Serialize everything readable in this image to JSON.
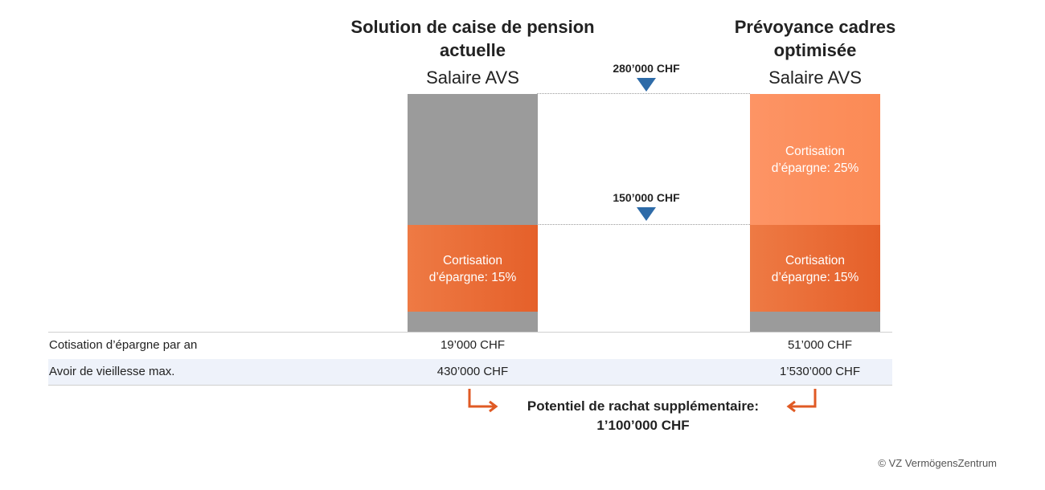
{
  "chart_data": {
    "type": "bar",
    "columns": [
      {
        "title": "Solution de caise de pension actuelle",
        "title_line1": "Solution de caise de pension",
        "title_line2": "actuelle",
        "subtitle": "Salaire AVS",
        "segments": [
          {
            "label_line1": "Cortisation",
            "label_line2": "d’épargne: 15%",
            "rate_percent": 15,
            "color": "#e8692d"
          }
        ]
      },
      {
        "title": "Prévoyance cadres optimisée",
        "title_line1": "Prévoyance cadres",
        "title_line2": "optimisée",
        "subtitle": "Salaire AVS",
        "segments": [
          {
            "label_line1": "Cortisation",
            "label_line2": "d’épargne: 25%",
            "rate_percent": 25,
            "color": "#fd8c59"
          },
          {
            "label_line1": "Cortisation",
            "label_line2": "d’épargne: 15%",
            "rate_percent": 15,
            "color": "#e8692d"
          }
        ]
      }
    ],
    "salary_thresholds": [
      {
        "label": "280’000 CHF",
        "value": 280000
      },
      {
        "label": "150’000 CHF",
        "value": 150000
      }
    ],
    "uncovered_color": "#9b9b9b",
    "arrow_color": "#2e6ba8"
  },
  "table": {
    "rows": [
      {
        "label": "Cotisation d’épargne par an",
        "current": "19’000 CHF",
        "optimized": "51’000 CHF"
      },
      {
        "label": "Avoir de vieillesse max.",
        "current": "430’000 CHF",
        "optimized": "1’530’000 CHF"
      }
    ],
    "alt_row_color": "#eef2fa"
  },
  "rachat": {
    "line1": "Potentiel de rachat supplémentaire:",
    "line2": "1’100’000 CHF",
    "arrow_color": "#e05a24"
  },
  "copyright": "© VZ VermögensZentrum"
}
